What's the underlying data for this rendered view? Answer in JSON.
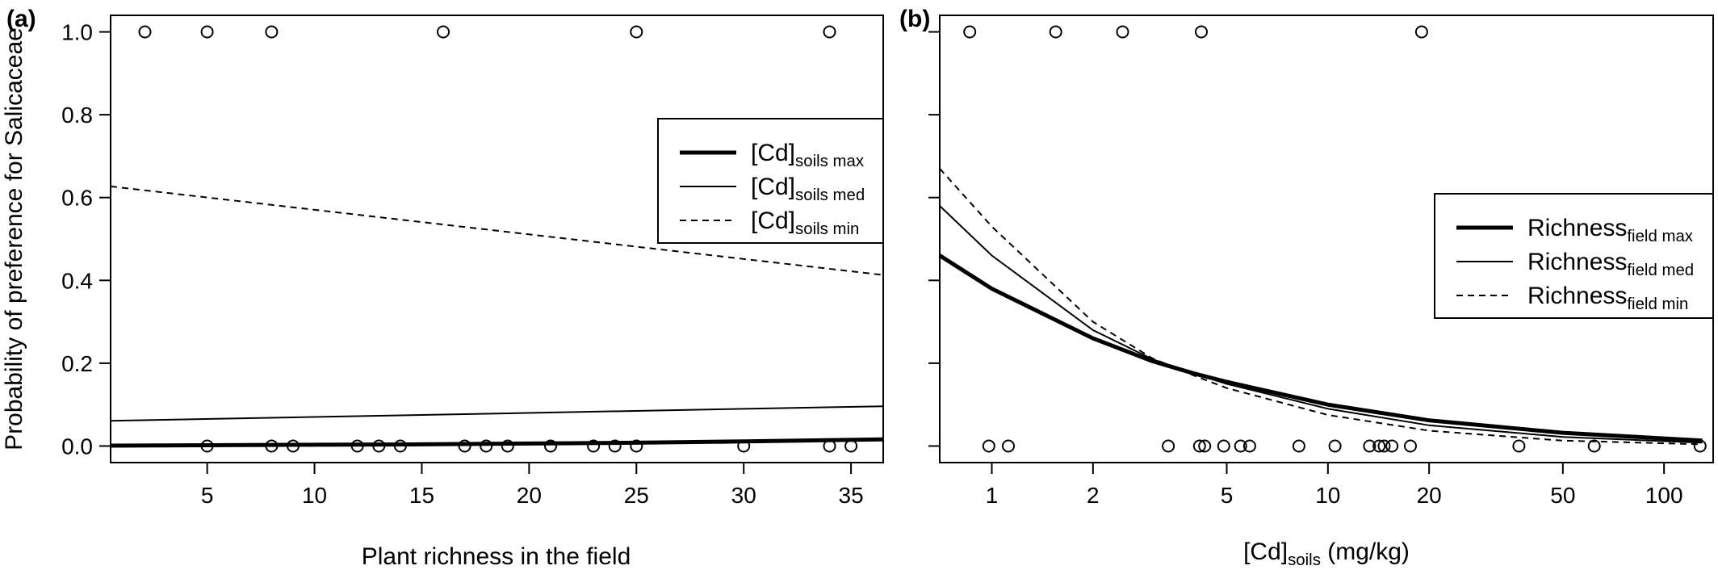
{
  "y_axis_label": "Probability of preference for Salicaceae",
  "chart_data": [
    {
      "panel": "(a)",
      "type": "line",
      "xlabel": "Plant richness in the field",
      "xscale": "linear",
      "xlim": [
        0.5,
        36.5
      ],
      "ylim": [
        -0.04,
        1.04
      ],
      "xticks": [
        5,
        10,
        15,
        20,
        25,
        30,
        35
      ],
      "yticks": [
        "0.0",
        "0.2",
        "0.4",
        "0.6",
        "0.8",
        "1.0"
      ],
      "legend_position": "right, upper",
      "series": [
        {
          "name_main": "[Cd]",
          "name_sub": "soils max",
          "style": "thick",
          "x": [
            0.5,
            5,
            10,
            15,
            20,
            25,
            30,
            36.5
          ],
          "y": [
            0.001,
            0.002,
            0.003,
            0.004,
            0.006,
            0.008,
            0.011,
            0.016
          ]
        },
        {
          "name_main": "[Cd]",
          "name_sub": "soils med",
          "style": "thin",
          "x": [
            0.5,
            36.5
          ],
          "y": [
            0.061,
            0.096
          ]
        },
        {
          "name_main": "[Cd]",
          "name_sub": "soils min",
          "style": "dashed",
          "x": [
            0.5,
            36.5
          ],
          "y": [
            0.627,
            0.413
          ]
        }
      ],
      "points": [
        {
          "x": 2.1,
          "y": 1
        },
        {
          "x": 5,
          "y": 1
        },
        {
          "x": 8,
          "y": 1
        },
        {
          "x": 16,
          "y": 1
        },
        {
          "x": 25,
          "y": 1
        },
        {
          "x": 34,
          "y": 1
        },
        {
          "x": 5,
          "y": 0
        },
        {
          "x": 8,
          "y": 0
        },
        {
          "x": 9,
          "y": 0
        },
        {
          "x": 12,
          "y": 0
        },
        {
          "x": 13,
          "y": 0
        },
        {
          "x": 14,
          "y": 0
        },
        {
          "x": 17,
          "y": 0
        },
        {
          "x": 18,
          "y": 0
        },
        {
          "x": 19,
          "y": 0
        },
        {
          "x": 21,
          "y": 0
        },
        {
          "x": 23,
          "y": 0
        },
        {
          "x": 24,
          "y": 0
        },
        {
          "x": 25,
          "y": 0
        },
        {
          "x": 30,
          "y": 0
        },
        {
          "x": 34,
          "y": 0
        },
        {
          "x": 35,
          "y": 0
        }
      ]
    },
    {
      "panel": "(b)",
      "type": "line",
      "xlabel_main": "[Cd]",
      "xlabel_sub": "soils",
      "xlabel_unit": "(mg/kg)",
      "xscale": "log",
      "xlim": [
        0.7,
        140
      ],
      "ylim": [
        -0.04,
        1.04
      ],
      "xticks": [
        1,
        2,
        5,
        10,
        20,
        50,
        100
      ],
      "yticks": [
        "0.0",
        "0.2",
        "0.4",
        "0.6",
        "0.8",
        "1.0"
      ],
      "legend_position": "right, middle",
      "series": [
        {
          "name_main": "Richness",
          "name_sub": "field max",
          "style": "thick",
          "x": [
            0.7,
            1,
            2,
            3,
            4,
            5,
            10,
            20,
            50,
            130
          ],
          "y": [
            0.46,
            0.38,
            0.26,
            0.205,
            0.175,
            0.155,
            0.1,
            0.062,
            0.032,
            0.013
          ]
        },
        {
          "name_main": "Richness",
          "name_sub": "field med",
          "style": "thin",
          "x": [
            0.7,
            1,
            2,
            3,
            4,
            5,
            10,
            20,
            50,
            130
          ],
          "y": [
            0.58,
            0.46,
            0.28,
            0.21,
            0.175,
            0.15,
            0.09,
            0.05,
            0.022,
            0.008
          ]
        },
        {
          "name_main": "Richness",
          "name_sub": "field min",
          "style": "dashed",
          "x": [
            0.7,
            1,
            2,
            3,
            4,
            5,
            10,
            20,
            50,
            130
          ],
          "y": [
            0.67,
            0.53,
            0.3,
            0.212,
            0.17,
            0.14,
            0.075,
            0.037,
            0.013,
            0.004
          ]
        }
      ],
      "points": [
        {
          "x": 0.86,
          "y": 1
        },
        {
          "x": 1.55,
          "y": 1
        },
        {
          "x": 2.45,
          "y": 1
        },
        {
          "x": 4.2,
          "y": 1
        },
        {
          "x": 19,
          "y": 1
        },
        {
          "x": 0.98,
          "y": 0
        },
        {
          "x": 1.12,
          "y": 0
        },
        {
          "x": 3.35,
          "y": 0
        },
        {
          "x": 4.15,
          "y": 0
        },
        {
          "x": 4.3,
          "y": 0
        },
        {
          "x": 4.9,
          "y": 0
        },
        {
          "x": 5.5,
          "y": 0
        },
        {
          "x": 5.85,
          "y": 0
        },
        {
          "x": 8.2,
          "y": 0
        },
        {
          "x": 10.5,
          "y": 0
        },
        {
          "x": 13.3,
          "y": 0
        },
        {
          "x": 14.2,
          "y": 0
        },
        {
          "x": 14.7,
          "y": 0
        },
        {
          "x": 15.5,
          "y": 0
        },
        {
          "x": 17.6,
          "y": 0
        },
        {
          "x": 37,
          "y": 0
        },
        {
          "x": 62,
          "y": 0
        },
        {
          "x": 128,
          "y": 0
        }
      ]
    }
  ]
}
